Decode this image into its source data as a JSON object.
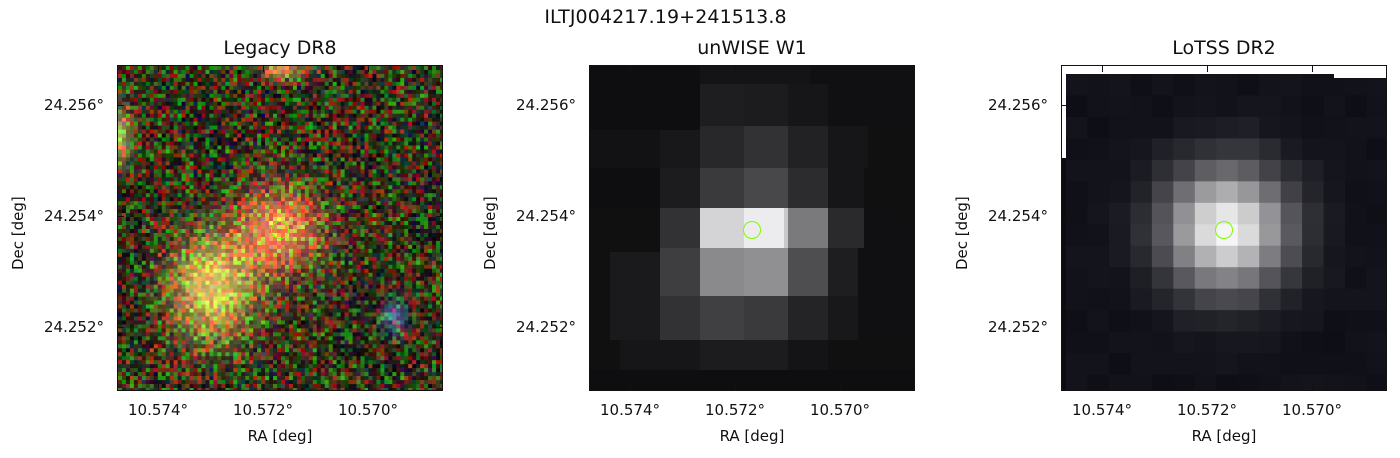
{
  "figure": {
    "title": "ILTJ004217.19+241513.8"
  },
  "axes_common": {
    "xlabel": "RA [deg]",
    "ylabel": "Dec [deg]",
    "xticks": [
      "10.574°",
      "10.572°",
      "10.570°"
    ],
    "yticks": [
      "24.256°",
      "24.254°",
      "24.252°"
    ]
  },
  "panels": [
    {
      "title": "Legacy DR8",
      "image": "optical RGB color cutout"
    },
    {
      "title": "unWISE W1",
      "image": "infrared grayscale cutout"
    },
    {
      "title": "LoTSS DR2",
      "image": "radio grayscale cutout"
    }
  ],
  "marker_color": "#7CFC00"
}
